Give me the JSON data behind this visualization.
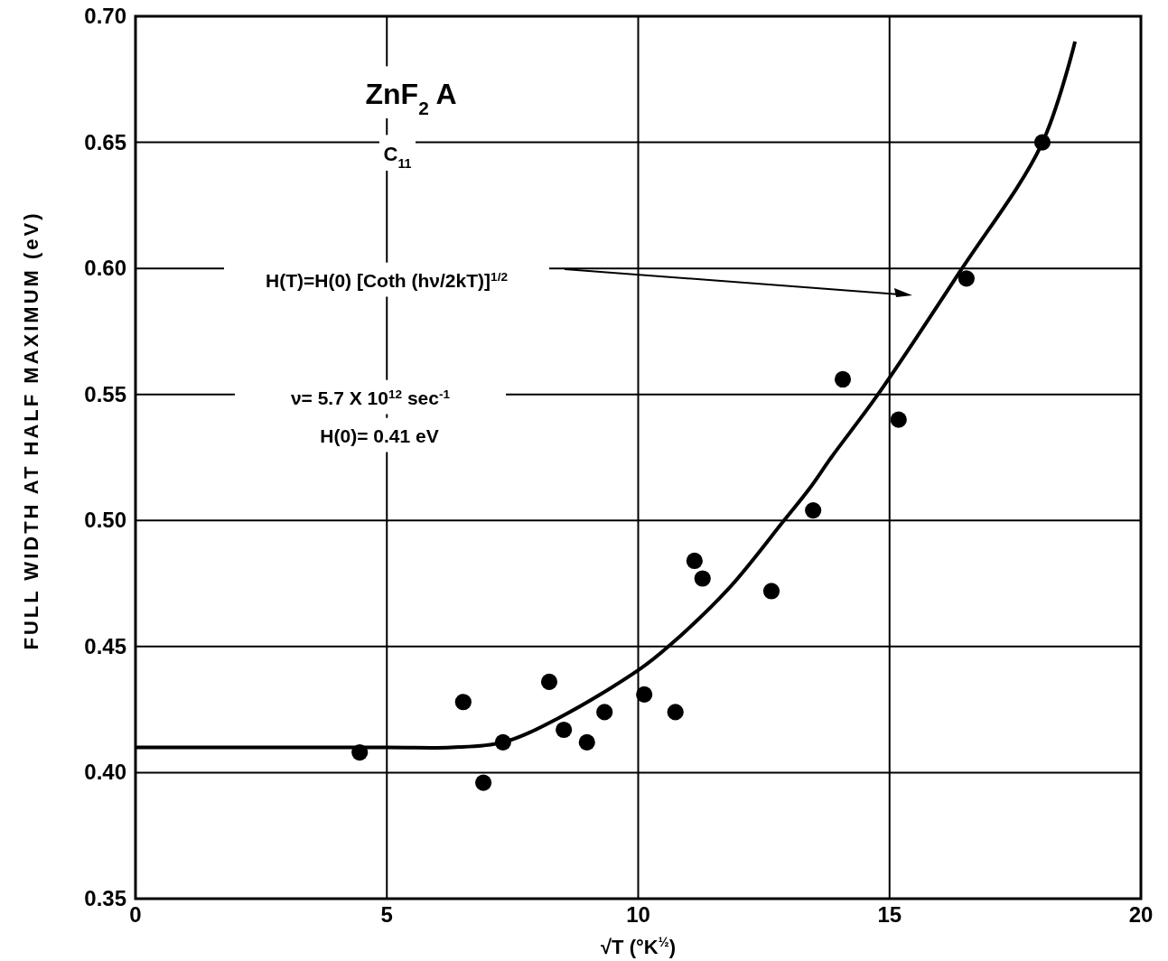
{
  "chart_data": {
    "type": "scatter",
    "xlabel": "√T     (°K$^{½}$)",
    "ylabel": "FULL WIDTH AT HALF MAXIMUM  (eV)",
    "xlim": [
      0,
      20
    ],
    "ylim": [
      0.35,
      0.7
    ],
    "xticks": [
      0,
      5,
      10,
      15,
      20
    ],
    "yticks": [
      0.35,
      {
        "value": 0.4,
        "label": "0.40"
      },
      0.45,
      {
        "value": 0.5,
        "label": "0.50"
      },
      0.55,
      {
        "value": 0.6,
        "label": "0.60"
      },
      0.65,
      {
        "value": 0.7,
        "label": "0.70"
      }
    ],
    "grid": true,
    "marker": "circle",
    "series": [
      {
        "color": "#000000",
        "x": [
          4.46,
          6.52,
          6.92,
          7.31,
          8.23,
          8.52,
          8.98,
          9.33,
          10.12,
          10.74,
          11.12,
          11.28,
          12.65,
          13.48,
          14.07,
          15.18,
          16.53,
          18.04
        ],
        "values": [
          0.408,
          0.428,
          0.396,
          0.412,
          0.436,
          0.417,
          0.412,
          0.424,
          0.431,
          0.424,
          0.484,
          0.477,
          0.472,
          0.504,
          0.556,
          0.54,
          0.596,
          0.65
        ]
      },
      {
        "type": "line",
        "color": "#000000",
        "line_style": "solid",
        "marker": "none",
        "x": [
          0,
          5,
          6.29,
          7.31,
          8.45,
          10.03,
          10.6,
          11.8,
          12.9,
          13.42,
          13.84,
          14.77,
          16.41,
          18.02,
          18.69
        ],
        "values": [
          0.41,
          0.41,
          0.41,
          0.412,
          0.422,
          0.441,
          0.45,
          0.473,
          0.5,
          0.513,
          0.525,
          0.55,
          0.599,
          0.649,
          0.69
        ]
      }
    ],
    "annotations": [
      "ZnF$_{2}$  A",
      "C$_{11}$",
      "H(T)=H(0) [Coth (hν/2kT)]$^{1/2}$",
      "ν= 5.7 X 10$^{12}$ sec$^{-1}$",
      "H(0)= 0.41 eV"
    ]
  }
}
